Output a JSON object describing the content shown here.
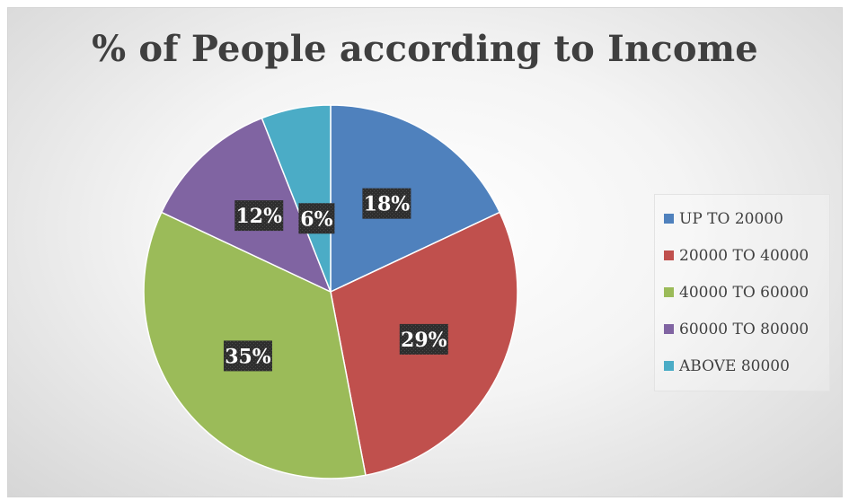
{
  "chart_data": {
    "type": "pie",
    "title": "% of People according to Income",
    "categories": [
      "UP TO 20000",
      "20000 TO 40000",
      "40000 TO 60000",
      "60000 TO 80000",
      "ABOVE 80000"
    ],
    "values": [
      18,
      29,
      35,
      12,
      6
    ],
    "labels": [
      "18%",
      "29%",
      "35%",
      "12%",
      "6%"
    ],
    "colors": [
      "#4f81bd",
      "#c0504d",
      "#9bbb59",
      "#8064a2",
      "#4bacc6"
    ],
    "legend_position": "right"
  }
}
